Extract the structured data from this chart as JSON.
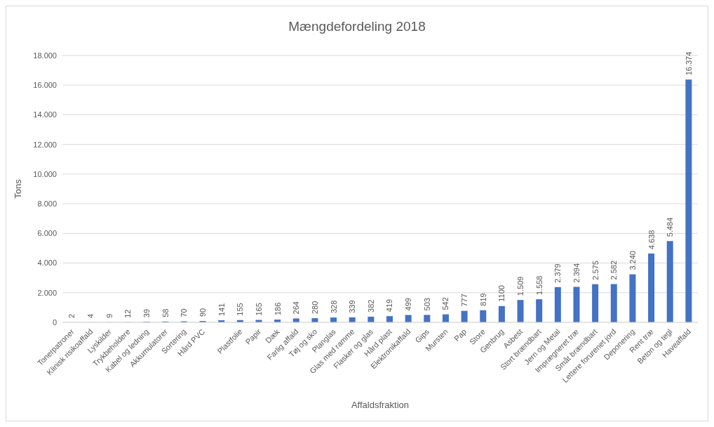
{
  "chart_data": {
    "type": "bar",
    "title": "Mængdefordeling 2018",
    "xlabel": "Affaldsfraktion",
    "ylabel": "Tons",
    "categories": [
      "Tonerpatroner",
      "Klinisk risikoaffald",
      "Lyskilder",
      "Trykbeholdere",
      "Kabel og ledning",
      "Akkumulatorer",
      "Sortering",
      "Hård PVC",
      null,
      "Plastfolie",
      "Papir",
      "Dæk",
      "Farlig affald",
      "Tøj og sko",
      "Planglas",
      "Glas med ramme",
      "Flasker og glas",
      "Hård plast",
      "Elektronikaffald",
      "Gips",
      "Mursten",
      "Pap",
      "Store",
      "Genbrug",
      "Asbest",
      "Stort brændbart",
      "Jern og Metal",
      "Imprægneret træ",
      "Småt brændbart",
      "Lettere forurenet jord",
      "Deponering",
      "Rent træ",
      "Beton og tegl",
      "Haveaffald"
    ],
    "values": [
      2,
      4,
      9,
      12,
      39,
      58,
      70,
      90,
      141,
      155,
      165,
      186,
      264,
      280,
      328,
      339,
      382,
      419,
      499,
      503,
      542,
      777,
      819,
      1100,
      1509,
      1558,
      2379,
      2394,
      2575,
      2582,
      3240,
      4638,
      5484,
      16374
    ],
    "value_labels": [
      "2",
      "4",
      "9",
      "12",
      "39",
      "58",
      "70",
      "90",
      "141",
      "155",
      "165",
      "186",
      "264",
      "280",
      "328",
      "339",
      "382",
      "419",
      "499",
      "503",
      "542",
      "777",
      "819",
      "1100",
      "1.509",
      "1.558",
      "2.379",
      "2.394",
      "2.575",
      "2.582",
      "3.240",
      "4.638",
      "5.484",
      "16.374"
    ],
    "color": "#4472c4",
    "ylim": [
      0,
      18000
    ],
    "yticks": [
      {
        "value": 0,
        "label": "0"
      },
      {
        "value": 2000,
        "label": "2.000"
      },
      {
        "value": 4000,
        "label": "4.000"
      },
      {
        "value": 6000,
        "label": "6.000"
      },
      {
        "value": 8000,
        "label": "8.000"
      },
      {
        "value": 10000,
        "label": "10.000"
      },
      {
        "value": 12000,
        "label": "12.000"
      },
      {
        "value": 14000,
        "label": "14.000"
      },
      {
        "value": 16000,
        "label": "16.000"
      },
      {
        "value": 18000,
        "label": "18.000"
      }
    ],
    "grid": "y",
    "legend": false
  }
}
